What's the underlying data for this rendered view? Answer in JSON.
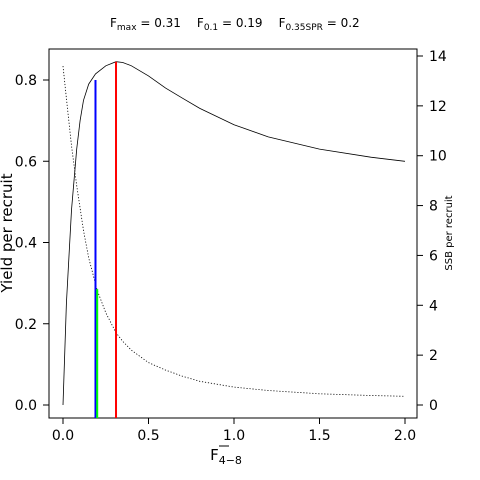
{
  "chart_data": {
    "type": "line",
    "title_parts": [
      {
        "main": "F",
        "sub": "max",
        "value": " = 0.31"
      },
      {
        "main": "F",
        "sub": "0.1",
        "value": " = 0.19"
      },
      {
        "main": "F",
        "sub": "0.35SPR",
        "value": " = 0.2"
      }
    ],
    "xlabel_main": "F",
    "xlabel_sub": "4−8",
    "ylabel_left": "Yield per recruit",
    "ylabel_right": "SSB per recruit",
    "xlim": [
      0,
      2.0
    ],
    "ylim_left": [
      0,
      0.85
    ],
    "ylim_right": [
      0,
      14
    ],
    "x_ticks": [
      0.0,
      0.5,
      1.0,
      1.5,
      2.0
    ],
    "x_tick_labels": [
      "0.0",
      "0.5",
      "1.0",
      "1.5",
      "2.0"
    ],
    "y_left_ticks": [
      0.0,
      0.2,
      0.4,
      0.6,
      0.8
    ],
    "y_left_tick_labels": [
      "0.0",
      "0.2",
      "0.4",
      "0.6",
      "0.8"
    ],
    "y_right_ticks": [
      0,
      2,
      4,
      6,
      8,
      10,
      12,
      14
    ],
    "y_right_tick_labels": [
      "0",
      "2",
      "4",
      "6",
      "8",
      "10",
      "12",
      "14"
    ],
    "series": [
      {
        "name": "Yield per recruit",
        "axis": "left",
        "style": "solid",
        "color": "#000000",
        "x": [
          0.0,
          0.02,
          0.05,
          0.08,
          0.1,
          0.12,
          0.15,
          0.19,
          0.25,
          0.31,
          0.35,
          0.4,
          0.5,
          0.6,
          0.7,
          0.8,
          1.0,
          1.2,
          1.5,
          1.8,
          2.0
        ],
        "y": [
          0.0,
          0.25,
          0.48,
          0.63,
          0.7,
          0.75,
          0.79,
          0.815,
          0.835,
          0.845,
          0.843,
          0.835,
          0.81,
          0.78,
          0.755,
          0.73,
          0.69,
          0.66,
          0.63,
          0.61,
          0.6
        ]
      },
      {
        "name": "SSB per recruit",
        "axis": "right",
        "style": "dotted",
        "color": "#000000",
        "x": [
          0.0,
          0.02,
          0.05,
          0.08,
          0.1,
          0.12,
          0.15,
          0.2,
          0.25,
          0.31,
          0.35,
          0.4,
          0.5,
          0.6,
          0.7,
          0.8,
          1.0,
          1.2,
          1.5,
          1.8,
          2.0
        ],
        "y": [
          13.6,
          12.3,
          10.4,
          8.8,
          7.9,
          7.0,
          5.9,
          4.6,
          3.7,
          2.9,
          2.55,
          2.2,
          1.7,
          1.4,
          1.15,
          0.95,
          0.72,
          0.58,
          0.45,
          0.38,
          0.35
        ]
      }
    ],
    "reference_lines": [
      {
        "name": "F0.1",
        "x": 0.19,
        "y_top_left": 0.8,
        "color": "#0000ff"
      },
      {
        "name": "F0.35SPR",
        "x": 0.2,
        "y_top_right": 4.65,
        "color": "#00ff00"
      },
      {
        "name": "Fmax",
        "x": 0.31,
        "y_top_left": 0.845,
        "color": "#ff0000"
      }
    ]
  }
}
